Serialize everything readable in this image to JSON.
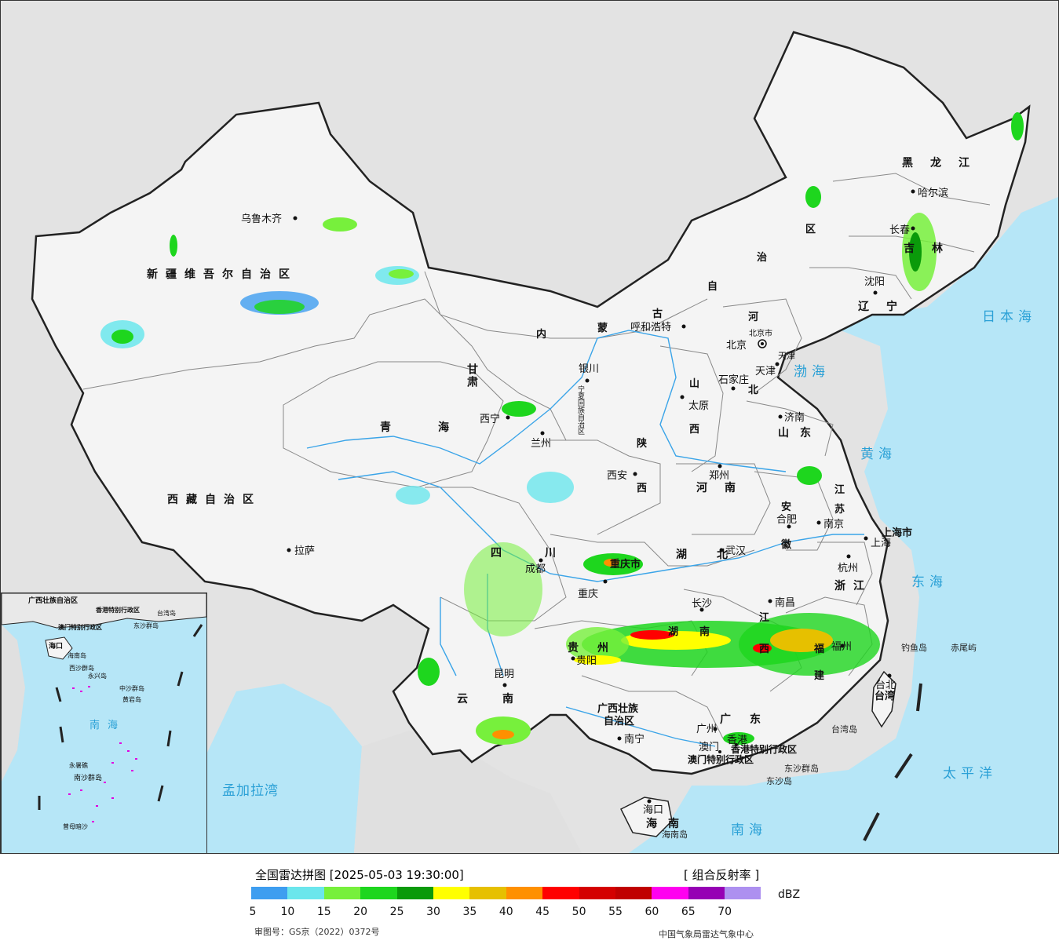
{
  "map": {
    "seas": [
      "渤海",
      "黄海",
      "东海",
      "南海",
      "日本海",
      "太平洋",
      "孟加拉湾"
    ],
    "provinces": {
      "xinjiang": "新疆维吾尔自治区",
      "xizang": "西藏自治区",
      "qinghai": "青海",
      "gansu": "甘肃",
      "neimenggu_1": "内",
      "neimenggu_2": "蒙",
      "neimenggu_3": "古",
      "neimenggu_4": "自",
      "neimenggu_5": "治",
      "neimenggu_6": "区",
      "heilongjiang": "黑龙江",
      "jilin": "吉林",
      "liaoning": "辽宁",
      "hebei_1": "河",
      "hebei_2": "北",
      "shanxi_1": "山",
      "shanxi_2": "西",
      "shandong": "山东",
      "shaanxi_1": "陕",
      "shaanxi_2": "西",
      "henan": "河南",
      "jiangsu_1": "江",
      "jiangsu_2": "苏",
      "anhui_1": "安",
      "anhui_2": "徽",
      "sichuan": "四川",
      "chongqing": "重庆市",
      "hubei": "湖北",
      "hunan_1": "湖",
      "hunan_2": "南",
      "jiangxi_1": "江",
      "jiangxi_2": "西",
      "zhejiang": "浙江",
      "fujian_1": "福",
      "fujian_2": "建",
      "guizhou": "贵州",
      "yunnan": "云南",
      "guangxi_1": "广西壮族",
      "guangxi_2": "自治区",
      "guangdong": "广东",
      "hainan": "海南",
      "taiwan": "台湾",
      "shanghai": "上海市",
      "tianjin": "天津",
      "ningxia": "宁夏回族自治区",
      "beijing": "北京市",
      "hk": "香港特别行政区",
      "macau": "澳门特别行政区"
    },
    "cities": [
      "乌鲁木齐",
      "拉萨",
      "西宁",
      "兰州",
      "银川",
      "呼和浩特",
      "北京",
      "天津",
      "石家庄",
      "太原",
      "济南",
      "郑州",
      "西安",
      "哈尔滨",
      "长春",
      "沈阳",
      "合肥",
      "南京",
      "上海",
      "杭州",
      "武汉",
      "成都",
      "重庆",
      "长沙",
      "南昌",
      "福州",
      "贵阳",
      "昆明",
      "南宁",
      "广州",
      "澳门",
      "香港",
      "海口",
      "台北"
    ],
    "islands": [
      "钓鱼岛",
      "赤尾屿",
      "东沙群岛",
      "东沙岛",
      "台湾岛",
      "海南岛"
    ]
  },
  "inset": {
    "labels": [
      "广西壮族自治区",
      "海口",
      "海南岛",
      "香港特别行政区",
      "澳门特别行政区",
      "台湾岛",
      "东沙群岛",
      "西沙群岛",
      "永兴岛",
      "中沙群岛",
      "黄岩岛",
      "南海",
      "永暑礁",
      "南沙群岛",
      "曾母暗沙"
    ]
  },
  "legend": {
    "title": "全国雷达拼图 [2025-05-03 19:30:00]",
    "product": "[ 组合反射率 ]",
    "unit": "dBZ",
    "ticks": [
      "5",
      "10",
      "15",
      "20",
      "25",
      "30",
      "35",
      "40",
      "45",
      "50",
      "55",
      "60",
      "65",
      "70"
    ],
    "colors": [
      "#3e9ef0",
      "#6be6ec",
      "#77f03c",
      "#1ed61e",
      "#0a9a0a",
      "#ffff00",
      "#e6c000",
      "#ff9000",
      "#ff0000",
      "#d40000",
      "#c00000",
      "#ff00f0",
      "#9600b4",
      "#ad90f0"
    ],
    "approval": "审图号：GS京（2022）0372号",
    "agency": "中国气象局雷达气象中心"
  }
}
